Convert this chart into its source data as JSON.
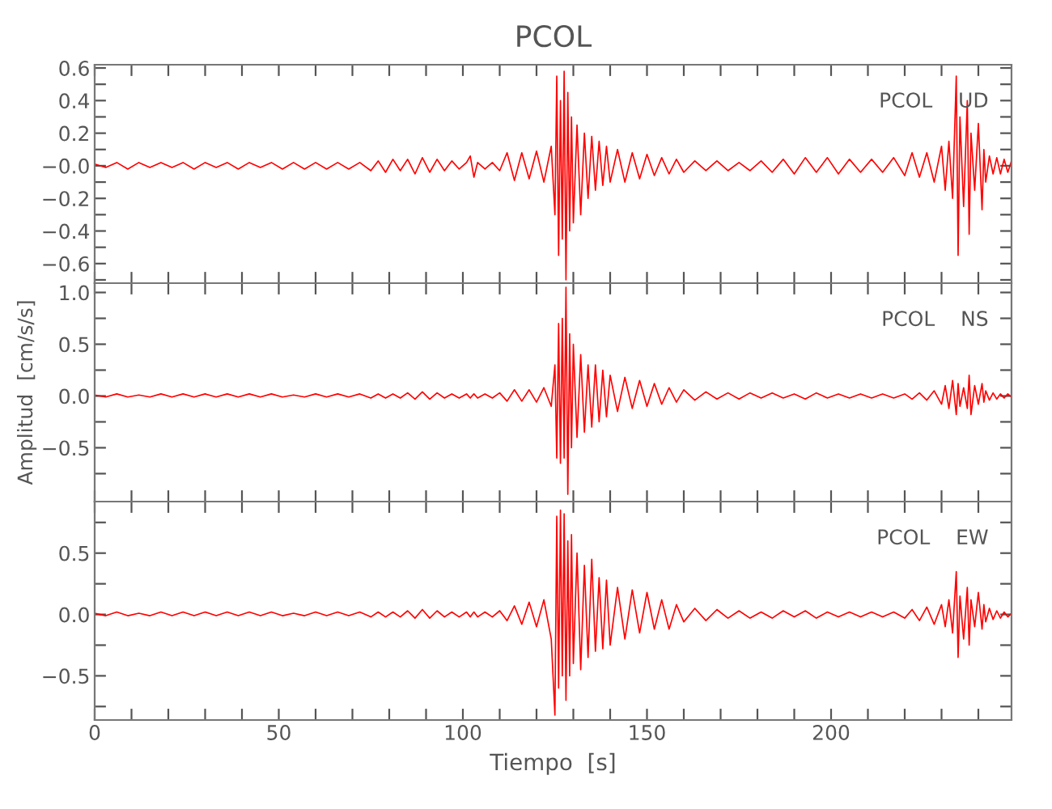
{
  "chart_data": [
    {
      "type": "line",
      "title": "PCOL",
      "annotations": [
        "PCOL    UD"
      ],
      "tick_labels": "y",
      "grid": false,
      "marker": "none",
      "line_style": "solid",
      "xlim": [
        0,
        249
      ],
      "xticks": [
        0,
        {
          "value": 10,
          "label": null
        },
        {
          "value": 20,
          "label": null
        },
        {
          "value": 30,
          "label": null
        },
        {
          "value": 40,
          "label": null
        },
        50,
        {
          "value": 60,
          "label": null
        },
        {
          "value": 70,
          "label": null
        },
        {
          "value": 80,
          "label": null
        },
        {
          "value": 90,
          "label": null
        },
        100,
        {
          "value": 110,
          "label": null
        },
        {
          "value": 120,
          "label": null
        },
        {
          "value": 130,
          "label": null
        },
        {
          "value": 140,
          "label": null
        },
        150,
        {
          "value": 160,
          "label": null
        },
        {
          "value": 170,
          "label": null
        },
        {
          "value": 180,
          "label": null
        },
        {
          "value": 190,
          "label": null
        },
        200,
        {
          "value": 210,
          "label": null
        },
        {
          "value": 220,
          "label": null
        },
        {
          "value": 230,
          "label": null
        },
        {
          "value": 240,
          "label": null
        }
      ],
      "ylim": [
        -0.72,
        0.62
      ],
      "yticks": [
        {
          "value": -0.7,
          "label": null
        },
        {
          "value": -0.6,
          "label": "−0.6"
        },
        {
          "value": -0.5,
          "label": null
        },
        {
          "value": -0.4,
          "label": "−0.4"
        },
        {
          "value": -0.3,
          "label": null
        },
        {
          "value": -0.2,
          "label": "−0.2"
        },
        {
          "value": -0.1,
          "label": null
        },
        {
          "value": 0,
          "label": "−0.0"
        },
        {
          "value": 0.1,
          "label": null
        },
        {
          "value": 0.2,
          "label": "0.2"
        },
        {
          "value": 0.3,
          "label": null
        },
        {
          "value": 0.4,
          "label": "0.4"
        },
        {
          "value": 0.5,
          "label": null
        },
        {
          "value": 0.6,
          "label": "0.6"
        }
      ],
      "series": [
        {
          "color": "#ff0000",
          "x": [
            0,
            3,
            6,
            9,
            12,
            15,
            18,
            21,
            24,
            27,
            30,
            33,
            36,
            39,
            42,
            45,
            48,
            51,
            54,
            57,
            60,
            63,
            66,
            69,
            72,
            75,
            77,
            79,
            81,
            83,
            85,
            87,
            89,
            91,
            93,
            95,
            97,
            99,
            101,
            102,
            103,
            104,
            106,
            108,
            110,
            112,
            114,
            116,
            118,
            120,
            122,
            124,
            125,
            125.5,
            126,
            126.5,
            127,
            127.5,
            128,
            128.5,
            129,
            129.5,
            130,
            131,
            132,
            133,
            134,
            135,
            136,
            137,
            138,
            139,
            140,
            142,
            144,
            146,
            148,
            150,
            152,
            154,
            156,
            158,
            160,
            163,
            166,
            169,
            172,
            175,
            178,
            181,
            184,
            187,
            190,
            193,
            196,
            199,
            202,
            205,
            208,
            211,
            214,
            217,
            220,
            222,
            224,
            226,
            228,
            230,
            231,
            232,
            233,
            234,
            234.5,
            235,
            236,
            237,
            237.5,
            238,
            239,
            240,
            241,
            241.5,
            242,
            243,
            244,
            245,
            246,
            247,
            248,
            249
          ],
          "values": [
            0.01,
            -0.01,
            0.02,
            -0.02,
            0.02,
            -0.01,
            0.02,
            -0.01,
            0.02,
            -0.02,
            0.02,
            -0.01,
            0.02,
            -0.02,
            0.02,
            -0.01,
            0.02,
            -0.02,
            0.02,
            -0.02,
            0.02,
            -0.02,
            0.02,
            -0.02,
            0.02,
            -0.03,
            0.03,
            -0.04,
            0.04,
            -0.03,
            0.04,
            -0.05,
            0.05,
            -0.04,
            0.04,
            -0.03,
            0.03,
            -0.02,
            0.02,
            0.06,
            -0.07,
            0.02,
            -0.02,
            0.02,
            -0.03,
            0.08,
            -0.09,
            0.08,
            -0.08,
            0.09,
            -0.1,
            0.12,
            -0.3,
            0.55,
            -0.55,
            0.4,
            -0.45,
            0.58,
            -0.7,
            0.45,
            -0.4,
            0.3,
            -0.35,
            0.25,
            -0.3,
            0.2,
            -0.2,
            0.18,
            -0.15,
            0.15,
            -0.12,
            0.12,
            -0.1,
            0.1,
            -0.1,
            0.08,
            -0.08,
            0.07,
            -0.06,
            0.05,
            -0.05,
            0.04,
            -0.04,
            0.03,
            -0.03,
            0.03,
            -0.03,
            0.02,
            -0.03,
            0.03,
            -0.04,
            0.04,
            -0.05,
            0.05,
            -0.04,
            0.05,
            -0.05,
            0.04,
            -0.04,
            0.04,
            -0.04,
            0.05,
            -0.06,
            0.08,
            -0.07,
            0.08,
            -0.1,
            0.12,
            -0.15,
            0.15,
            -0.2,
            0.55,
            -0.55,
            0.3,
            -0.25,
            0.4,
            -0.42,
            0.2,
            -0.15,
            0.26,
            -0.27,
            0.1,
            -0.1,
            0.06,
            -0.05,
            0.05,
            -0.05,
            0.04,
            -0.04,
            0.03
          ]
        }
      ]
    },
    {
      "type": "line",
      "ylabel": "Amplitud  [cm/s/s]",
      "annotations": [
        "PCOL    NS"
      ],
      "tick_labels": "y",
      "grid": false,
      "marker": "none",
      "line_style": "solid",
      "xlim": [
        0,
        249
      ],
      "xticks": [
        0,
        {
          "value": 10,
          "label": null
        },
        {
          "value": 20,
          "label": null
        },
        {
          "value": 30,
          "label": null
        },
        {
          "value": 40,
          "label": null
        },
        50,
        {
          "value": 60,
          "label": null
        },
        {
          "value": 70,
          "label": null
        },
        {
          "value": 80,
          "label": null
        },
        {
          "value": 90,
          "label": null
        },
        100,
        {
          "value": 110,
          "label": null
        },
        {
          "value": 120,
          "label": null
        },
        {
          "value": 130,
          "label": null
        },
        {
          "value": 140,
          "label": null
        },
        150,
        {
          "value": 160,
          "label": null
        },
        {
          "value": 170,
          "label": null
        },
        {
          "value": 180,
          "label": null
        },
        {
          "value": 190,
          "label": null
        },
        200,
        {
          "value": 210,
          "label": null
        },
        {
          "value": 220,
          "label": null
        },
        {
          "value": 230,
          "label": null
        },
        {
          "value": 240,
          "label": null
        }
      ],
      "ylim": [
        -1.02,
        1.09
      ],
      "yticks": [
        {
          "value": -0.75,
          "label": null
        },
        {
          "value": -0.5,
          "label": "−0.5"
        },
        {
          "value": -0.25,
          "label": null
        },
        {
          "value": 0,
          "label": "0.0"
        },
        {
          "value": 0.25,
          "label": null
        },
        {
          "value": 0.5,
          "label": "0.5"
        },
        {
          "value": 0.75,
          "label": null
        },
        {
          "value": 1.0,
          "label": "1.0"
        }
      ],
      "series": [
        {
          "color": "#ff0000",
          "x": [
            0,
            3,
            6,
            9,
            12,
            15,
            18,
            21,
            24,
            27,
            30,
            33,
            36,
            39,
            42,
            45,
            48,
            51,
            54,
            57,
            60,
            63,
            66,
            69,
            72,
            75,
            77,
            79,
            81,
            83,
            85,
            87,
            89,
            91,
            93,
            95,
            97,
            99,
            101,
            102,
            103,
            104,
            106,
            108,
            110,
            112,
            114,
            116,
            118,
            120,
            122,
            124,
            125,
            125.5,
            126,
            126.5,
            127,
            127.5,
            128,
            128.5,
            129,
            129.5,
            130,
            131,
            132,
            133,
            134,
            135,
            136,
            137,
            138,
            139,
            140,
            142,
            144,
            146,
            148,
            150,
            152,
            154,
            156,
            158,
            160,
            163,
            166,
            169,
            172,
            175,
            178,
            181,
            184,
            187,
            190,
            193,
            196,
            199,
            202,
            205,
            208,
            211,
            214,
            217,
            220,
            222,
            224,
            226,
            228,
            230,
            231,
            232,
            233,
            234,
            234.5,
            235,
            236,
            237,
            237.5,
            238,
            239,
            240,
            241,
            241.5,
            242,
            243,
            244,
            245,
            246,
            247,
            248,
            249
          ],
          "values": [
            0.01,
            -0.01,
            0.02,
            -0.01,
            0.01,
            -0.01,
            0.02,
            -0.01,
            0.02,
            -0.01,
            0.02,
            -0.01,
            0.02,
            -0.01,
            0.02,
            -0.01,
            0.02,
            -0.01,
            0.01,
            -0.01,
            0.02,
            -0.01,
            0.02,
            -0.01,
            0.02,
            -0.02,
            0.02,
            -0.02,
            0.02,
            -0.02,
            0.03,
            -0.03,
            0.04,
            -0.03,
            0.03,
            -0.02,
            0.02,
            -0.02,
            0.02,
            -0.02,
            0.02,
            -0.02,
            0.02,
            -0.02,
            0.03,
            -0.05,
            0.06,
            -0.05,
            0.06,
            -0.06,
            0.08,
            -0.1,
            0.3,
            -0.6,
            0.7,
            -0.65,
            0.75,
            -0.6,
            1.05,
            -0.95,
            0.6,
            -0.5,
            0.5,
            -0.4,
            0.4,
            -0.35,
            0.3,
            -0.3,
            0.3,
            -0.25,
            0.25,
            -0.2,
            0.2,
            -0.15,
            0.18,
            -0.12,
            0.15,
            -0.1,
            0.12,
            -0.08,
            0.08,
            -0.06,
            0.06,
            -0.04,
            0.04,
            -0.03,
            0.03,
            -0.03,
            0.03,
            -0.02,
            0.03,
            -0.02,
            0.02,
            -0.03,
            0.03,
            -0.02,
            0.02,
            -0.02,
            0.02,
            -0.02,
            0.02,
            -0.02,
            0.02,
            -0.03,
            0.03,
            -0.04,
            0.05,
            -0.08,
            0.1,
            -0.12,
            0.15,
            -0.18,
            0.12,
            -0.1,
            0.08,
            -0.12,
            0.2,
            -0.18,
            0.1,
            -0.08,
            0.12,
            -0.06,
            0.05,
            -0.04,
            0.03,
            -0.03,
            0.02,
            -0.02,
            0.02,
            -0.01
          ]
        }
      ]
    },
    {
      "type": "line",
      "xlabel": "Tiempo  [s]",
      "annotations": [
        "PCOL    EW"
      ],
      "grid": false,
      "marker": "none",
      "line_style": "solid",
      "xlim": [
        0,
        249
      ],
      "xticks": [
        0,
        {
          "value": 10,
          "label": null
        },
        {
          "value": 20,
          "label": null
        },
        {
          "value": 30,
          "label": null
        },
        {
          "value": 40,
          "label": null
        },
        50,
        {
          "value": 60,
          "label": null
        },
        {
          "value": 70,
          "label": null
        },
        {
          "value": 80,
          "label": null
        },
        {
          "value": 90,
          "label": null
        },
        100,
        {
          "value": 110,
          "label": null
        },
        {
          "value": 120,
          "label": null
        },
        {
          "value": 130,
          "label": null
        },
        {
          "value": 140,
          "label": null
        },
        150,
        {
          "value": 160,
          "label": null
        },
        {
          "value": 170,
          "label": null
        },
        {
          "value": 180,
          "label": null
        },
        {
          "value": 190,
          "label": null
        },
        200,
        {
          "value": 210,
          "label": null
        },
        {
          "value": 220,
          "label": null
        },
        {
          "value": 230,
          "label": null
        },
        {
          "value": 240,
          "label": null
        }
      ],
      "ylim": [
        -0.86,
        0.92
      ],
      "yticks": [
        {
          "value": -0.75,
          "label": null
        },
        {
          "value": -0.5,
          "label": "−0.5"
        },
        {
          "value": -0.25,
          "label": null
        },
        {
          "value": 0,
          "label": "0.0"
        },
        {
          "value": 0.25,
          "label": null
        },
        {
          "value": 0.5,
          "label": "0.5"
        },
        {
          "value": 0.75,
          "label": null
        }
      ],
      "series": [
        {
          "color": "#ff0000",
          "x": [
            0,
            3,
            6,
            9,
            12,
            15,
            18,
            21,
            24,
            27,
            30,
            33,
            36,
            39,
            42,
            45,
            48,
            51,
            54,
            57,
            60,
            63,
            66,
            69,
            72,
            75,
            77,
            79,
            81,
            83,
            85,
            87,
            89,
            91,
            93,
            95,
            97,
            99,
            101,
            102,
            103,
            104,
            106,
            108,
            110,
            112,
            114,
            116,
            118,
            120,
            122,
            124,
            125,
            125.5,
            126,
            126.5,
            127,
            127.5,
            128,
            128.5,
            129,
            129.5,
            130,
            131,
            132,
            133,
            134,
            135,
            136,
            137,
            138,
            139,
            140,
            142,
            144,
            146,
            148,
            150,
            152,
            154,
            156,
            158,
            160,
            163,
            166,
            169,
            172,
            175,
            178,
            181,
            184,
            187,
            190,
            193,
            196,
            199,
            202,
            205,
            208,
            211,
            214,
            217,
            220,
            222,
            224,
            226,
            228,
            230,
            231,
            232,
            233,
            234,
            234.5,
            235,
            236,
            237,
            237.5,
            238,
            239,
            240,
            241,
            241.5,
            242,
            243,
            244,
            245,
            246,
            247,
            248,
            249
          ],
          "values": [
            0.01,
            -0.01,
            0.02,
            -0.01,
            0.01,
            -0.01,
            0.02,
            -0.01,
            0.02,
            -0.01,
            0.02,
            -0.01,
            0.02,
            -0.01,
            0.02,
            -0.01,
            0.02,
            -0.01,
            0.01,
            -0.01,
            0.02,
            -0.01,
            0.02,
            -0.01,
            0.02,
            -0.02,
            0.02,
            -0.02,
            0.02,
            -0.02,
            0.03,
            -0.03,
            0.04,
            -0.03,
            0.03,
            -0.02,
            0.02,
            -0.02,
            0.02,
            -0.02,
            0.02,
            -0.02,
            0.02,
            -0.02,
            0.03,
            -0.05,
            0.07,
            -0.08,
            0.1,
            -0.1,
            0.12,
            -0.2,
            -0.82,
            0.8,
            -0.6,
            0.85,
            -0.5,
            0.82,
            -0.7,
            0.6,
            -0.5,
            0.65,
            -0.4,
            0.5,
            -0.45,
            0.4,
            -0.35,
            0.45,
            -0.3,
            0.3,
            -0.28,
            0.28,
            -0.25,
            0.22,
            -0.2,
            0.2,
            -0.15,
            0.18,
            -0.12,
            0.12,
            -0.12,
            0.08,
            -0.06,
            0.05,
            -0.05,
            0.04,
            -0.03,
            0.03,
            -0.03,
            0.02,
            -0.03,
            0.03,
            -0.02,
            0.03,
            -0.03,
            0.02,
            -0.02,
            0.02,
            -0.02,
            0.02,
            -0.02,
            0.02,
            -0.03,
            0.04,
            -0.05,
            0.06,
            -0.08,
            0.08,
            -0.1,
            0.12,
            -0.15,
            0.35,
            -0.35,
            0.15,
            -0.2,
            0.22,
            -0.25,
            0.12,
            -0.1,
            0.18,
            -0.12,
            0.08,
            -0.06,
            0.05,
            -0.04,
            0.03,
            -0.03,
            0.02,
            -0.02,
            0.01
          ]
        }
      ]
    }
  ]
}
